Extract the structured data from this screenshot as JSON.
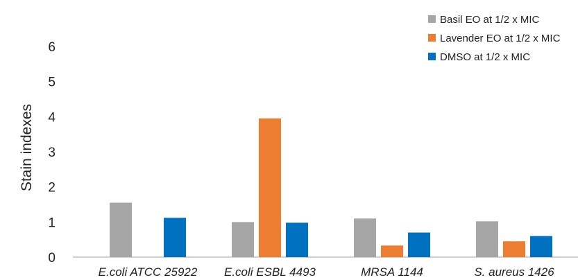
{
  "chart_data": {
    "type": "bar",
    "categories": [
      "E.coli ATCC 25922",
      "E.coli ESBL 4493",
      "MRSA 1144",
      "S. aureus 1426"
    ],
    "series": [
      {
        "name": "Basil EO at 1/2 x MIC",
        "color": "#a6a6a6",
        "values": [
          1.55,
          1.0,
          1.1,
          1.02
        ]
      },
      {
        "name": "Lavender EO at 1/2 x MIC",
        "color": "#ed7d31",
        "values": [
          null,
          3.95,
          0.33,
          0.45
        ]
      },
      {
        "name": "DMSO at 1/2 x MIC",
        "color": "#0070c0",
        "values": [
          1.12,
          0.98,
          0.7,
          0.6
        ]
      }
    ],
    "title": "",
    "xlabel": "",
    "ylabel": "Stain indexes",
    "ylim": [
      0,
      6
    ],
    "yticks": [
      0,
      1,
      2,
      3,
      4,
      5,
      6
    ],
    "grid": false,
    "legend_position": "top-right"
  }
}
